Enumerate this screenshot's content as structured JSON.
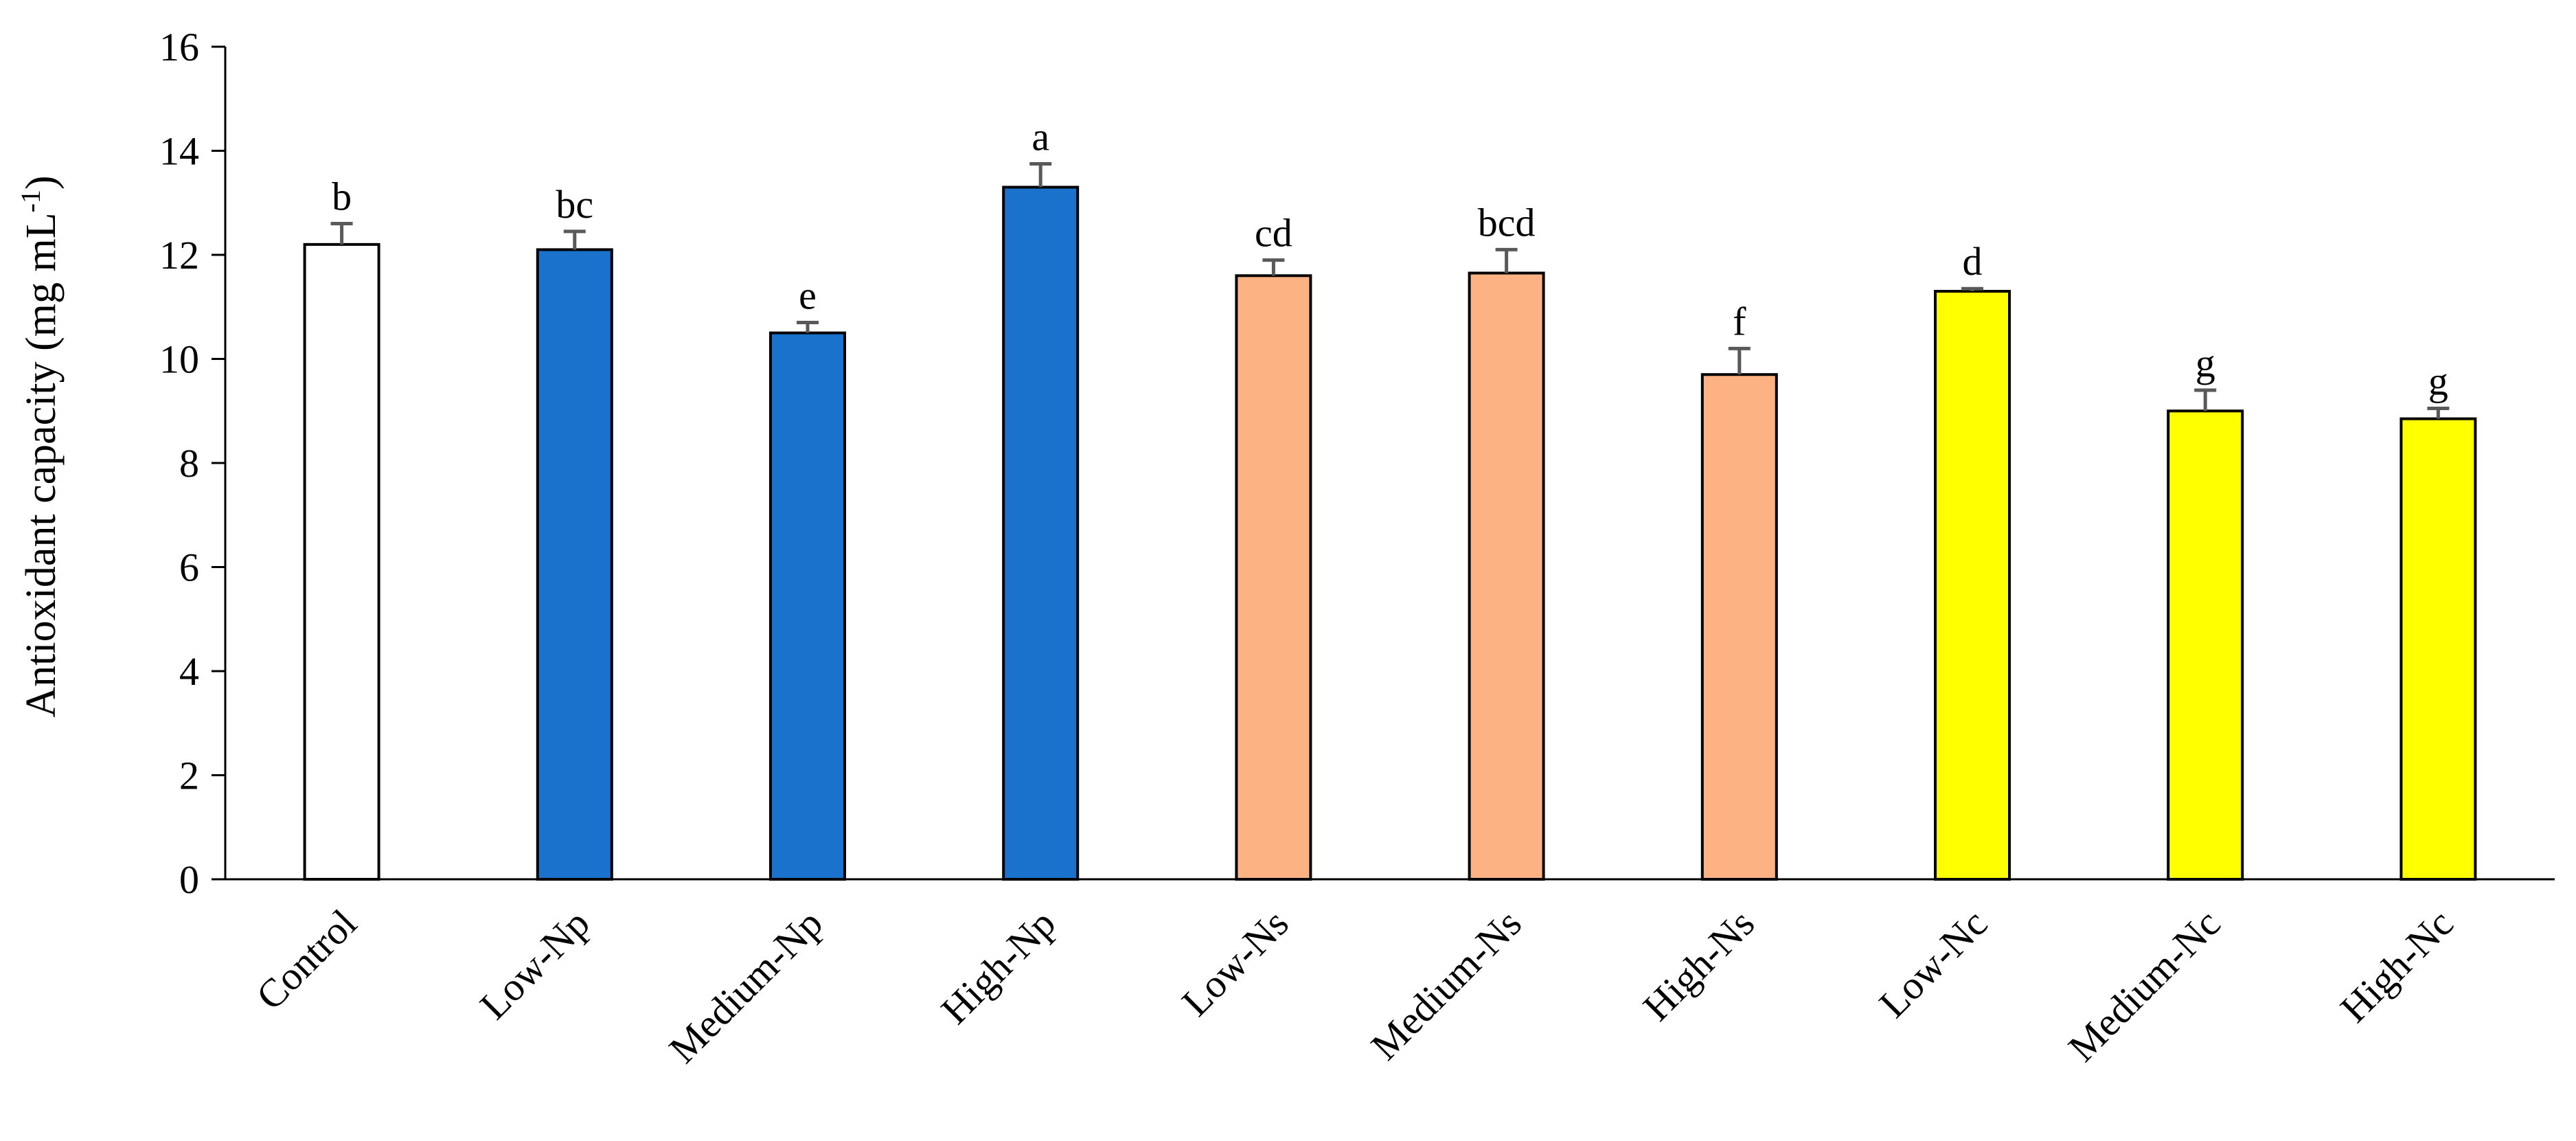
{
  "chart_data": {
    "type": "bar",
    "title": "",
    "xlabel": "",
    "ylabel": "Antioxidant capacity (mg mL",
    "ylabel_superscript": "-1",
    "ylabel_close": ")",
    "ylim": [
      0,
      16
    ],
    "yticks": [
      0,
      2,
      4,
      6,
      8,
      10,
      12,
      14,
      16
    ],
    "grid": false,
    "legend": "none",
    "categories": [
      "Control",
      "Low-Np",
      "Medium-Np",
      "High-Np",
      "Low-Ns",
      "Medium-Ns",
      "High-Ns",
      "Low-Nc",
      "Medium-Nc",
      "High-Nc"
    ],
    "values": [
      12.2,
      12.1,
      10.5,
      13.3,
      11.6,
      11.65,
      9.7,
      11.3,
      9.0,
      8.85
    ],
    "errors": [
      0.4,
      0.35,
      0.2,
      0.45,
      0.3,
      0.45,
      0.5,
      0.05,
      0.4,
      0.2
    ],
    "significance": [
      "b",
      "bc",
      "e",
      "a",
      "cd",
      "bcd",
      "f",
      "d",
      "g",
      "g"
    ],
    "colors": [
      "#ffffff",
      "#1a72cc",
      "#1a72cc",
      "#1a72cc",
      "#fdb283",
      "#fdb283",
      "#fdb283",
      "#ffff00",
      "#ffff00",
      "#ffff00"
    ],
    "bar_outline": "#000000",
    "error_bar_color": "#595959"
  }
}
